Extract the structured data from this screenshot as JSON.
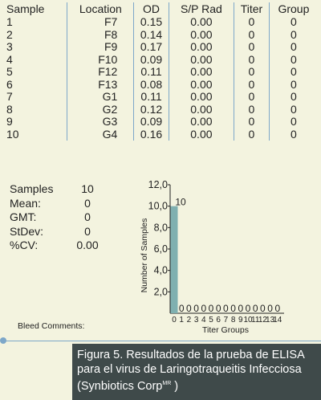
{
  "table": {
    "headers": [
      "Sample",
      "Location",
      "OD",
      "S/P Rad",
      "Titer",
      "Group"
    ],
    "rows": [
      [
        "1",
        "F7",
        "0.15",
        "0.00",
        "0",
        "0"
      ],
      [
        "2",
        "F8",
        "0.14",
        "0.00",
        "0",
        "0"
      ],
      [
        "3",
        "F9",
        "0.17",
        "0.00",
        "0",
        "0"
      ],
      [
        "4",
        "F10",
        "0.09",
        "0.00",
        "0",
        "0"
      ],
      [
        "5",
        "F12",
        "0.11",
        "0.00",
        "0",
        "0"
      ],
      [
        "6",
        "F13",
        "0.08",
        "0.00",
        "0",
        "0"
      ],
      [
        "7",
        "G1",
        "0.11",
        "0.00",
        "0",
        "0"
      ],
      [
        "8",
        "G2",
        "0.12",
        "0.00",
        "0",
        "0"
      ],
      [
        "9",
        "G3",
        "0.09",
        "0.00",
        "0",
        "0"
      ],
      [
        "10",
        "G4",
        "0.16",
        "0.00",
        "0",
        "0"
      ]
    ]
  },
  "stats": [
    {
      "label": "Samples",
      "value": "10"
    },
    {
      "label": "Mean:",
      "value": "0"
    },
    {
      "label": "GMT:",
      "value": "0"
    },
    {
      "label": "StDev:",
      "value": "0"
    },
    {
      "label": "%CV:",
      "value": "0.00"
    }
  ],
  "bleed_comments": "Bleed Comments:",
  "chart_data": {
    "type": "bar",
    "categories": [
      "0",
      "1",
      "2",
      "3",
      "4",
      "5",
      "6",
      "7",
      "8",
      "9",
      "10",
      "11",
      "12",
      "13",
      "14"
    ],
    "values": [
      10,
      0,
      0,
      0,
      0,
      0,
      0,
      0,
      0,
      0,
      0,
      0,
      0,
      0,
      0
    ],
    "data_labels": [
      "10",
      "0",
      "0",
      "0",
      "0",
      "0",
      "0",
      "0",
      "0",
      "0",
      "0",
      "0",
      "0",
      "0",
      "0"
    ],
    "ylim": [
      0,
      12
    ],
    "yticks": [
      "2,0",
      "4,0",
      "6,0",
      "8,0",
      "10,0",
      "12,0"
    ],
    "xlabel": "Titer Groups",
    "ylabel": "Number of Samples",
    "bar_color": "#7fb0b0",
    "grid": false
  },
  "caption": {
    "line1": "Figura 5. Resultados de la prueba de ELISA",
    "line2": "para el virus de Laringotraqueitis Infecciosa",
    "line3_prefix": "(Synbiotics Corp",
    "line3_sup": "MR",
    "line3_suffix": " )"
  }
}
